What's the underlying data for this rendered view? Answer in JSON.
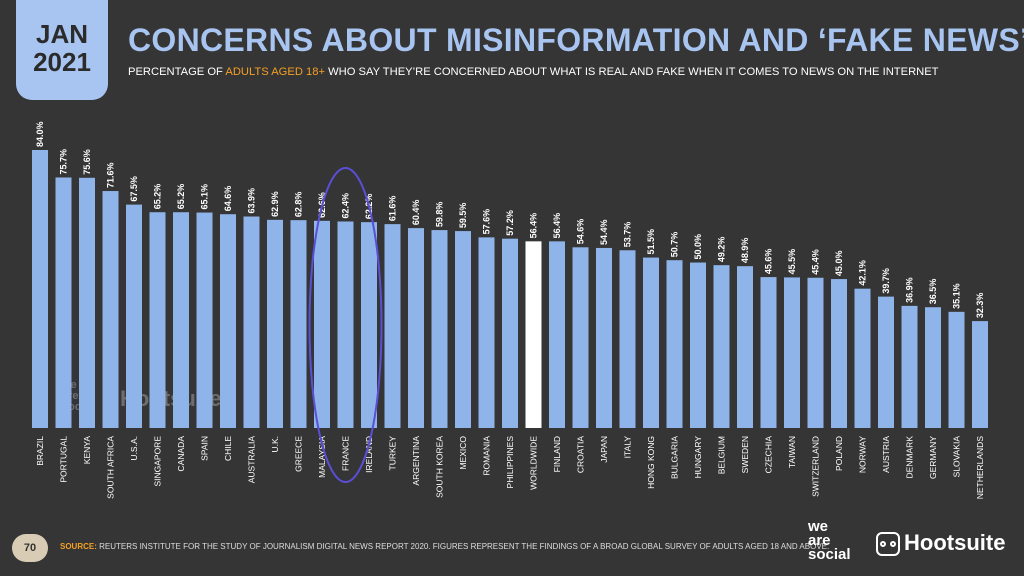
{
  "header": {
    "month": "JAN",
    "year": "2021",
    "title": "CONCERNS ABOUT MISINFORMATION AND ‘FAKE NEWS’",
    "subtitle_pre": "PERCENTAGE OF ",
    "subtitle_hl": "ADULTS AGED 18+",
    "subtitle_post": " WHO SAY THEY’RE CONCERNED ABOUT WHAT IS REAL AND FAKE WHEN IT COMES TO NEWS ON THE INTERNET"
  },
  "footer": {
    "page": "70",
    "source_label": "SOURCE:",
    "source_text": " REUTERS INSTITUTE FOR THE STUDY OF JOURNALISM DIGITAL NEWS REPORT 2020. FIGURES REPRESENT THE FINDINGS OF A BROAD GLOBAL SURVEY OF ADULTS AGED 18 AND ABOVE.",
    "logo1_l1": "we",
    "logo1_l2": "are",
    "logo1_l3": "social",
    "logo2": "Hootsuite",
    "wm1_l1": "we",
    "wm1_l2": "are",
    "wm1_l3": "social",
    "wm2": "Hootsuite"
  },
  "colors": {
    "bar": "#8fb4ea",
    "highlight_bar": "#ffffff",
    "background": "#353535",
    "accent": "#f4a024",
    "circle": "#5a4fd6"
  },
  "chart_data": {
    "type": "bar",
    "categories": [
      "BRAZIL",
      "PORTUGAL",
      "KENYA",
      "SOUTH AFRICA",
      "U.S.A.",
      "SINGAPORE",
      "CANADA",
      "SPAIN",
      "CHILE",
      "AUSTRALIA",
      "U.K.",
      "GREECE",
      "MALAYSIA",
      "FRANCE",
      "IRELAND",
      "TURKEY",
      "ARGENTINA",
      "SOUTH KOREA",
      "MEXICO",
      "ROMANIA",
      "PHILIPPINES",
      "WORLDWIDE",
      "FINLAND",
      "CROATIA",
      "JAPAN",
      "ITALY",
      "HONG KONG",
      "BULGARIA",
      "HUNGARY",
      "BELGIUM",
      "SWEDEN",
      "CZECHIA",
      "TAIWAN",
      "SWITZERLAND",
      "POLAND",
      "NORWAY",
      "AUSTRIA",
      "DENMARK",
      "GERMANY",
      "SLOVAKIA",
      "NETHERLANDS"
    ],
    "values": [
      84.0,
      75.7,
      75.6,
      71.6,
      67.5,
      65.2,
      65.2,
      65.1,
      64.6,
      63.9,
      62.9,
      62.8,
      62.6,
      62.4,
      62.2,
      61.6,
      60.4,
      59.8,
      59.5,
      57.6,
      57.2,
      56.4,
      56.4,
      54.6,
      54.4,
      53.7,
      51.5,
      50.7,
      50.0,
      49.2,
      48.9,
      45.6,
      45.5,
      45.4,
      45.0,
      42.1,
      39.7,
      36.9,
      36.5,
      35.1,
      32.3
    ],
    "labels": [
      "84.0%",
      "75.7%",
      "75.6%",
      "71.6%",
      "67.5%",
      "65.2%",
      "65.2%",
      "65.1%",
      "64.6%",
      "63.9%",
      "62.9%",
      "62.8%",
      "62.6%",
      "62.4%",
      "62.2%",
      "61.6%",
      "60.4%",
      "59.8%",
      "59.5%",
      "57.6%",
      "57.2%",
      "56.4%",
      "56.4%",
      "54.6%",
      "54.4%",
      "53.7%",
      "51.5%",
      "50.7%",
      "50.0%",
      "49.2%",
      "48.9%",
      "45.6%",
      "45.5%",
      "45.4%",
      "45.0%",
      "42.1%",
      "39.7%",
      "36.9%",
      "36.5%",
      "35.1%",
      "32.3%"
    ],
    "highlight_category": "WORLDWIDE",
    "circled_category": "FRANCE",
    "ylim": [
      0,
      84
    ],
    "grid": false,
    "legend": "none"
  }
}
